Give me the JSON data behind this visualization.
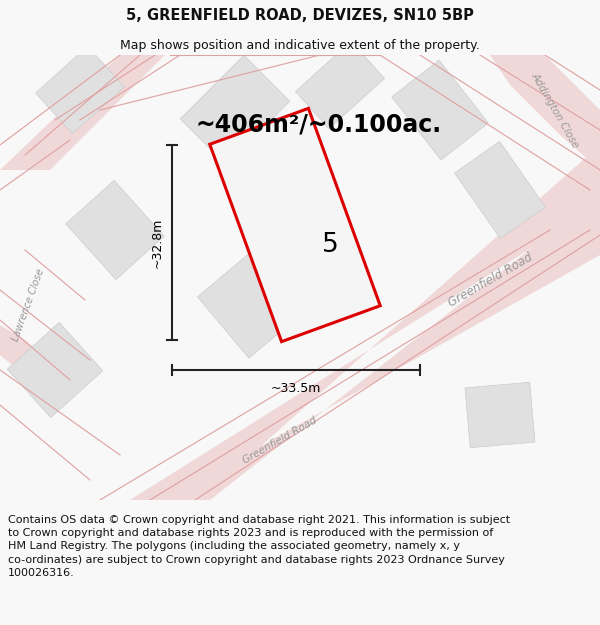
{
  "title": "5, GREENFIELD ROAD, DEVIZES, SN10 5BP",
  "subtitle": "Map shows position and indicative extent of the property.",
  "area_label": "~406m²/~0.100ac.",
  "plot_number": "5",
  "width_label": "~33.5m",
  "height_label": "~32.8m",
  "footer_line1": "Contains OS data © Crown copyright and database right 2021. This information is subject",
  "footer_line2": "to Crown copyright and database rights 2023 and is reproduced with the permission of",
  "footer_line3": "HM Land Registry. The polygons (including the associated geometry, namely x, y",
  "footer_line4": "co-ordinates) are subject to Crown copyright and database rights 2023 Ordnance Survey",
  "footer_line5": "100026316.",
  "bg_color": "#f8f8f8",
  "map_bg": "#ffffff",
  "plot_edge_color": "#dd0000",
  "plot_fill": "#f5f5f5",
  "road_fill_color": "#f0d8d8",
  "road_line_color": "#e0a0a0",
  "building_color": "#e0e0e0",
  "building_edge": "#cccccc",
  "road_label_color": "#999999",
  "dim_line_color": "#222222",
  "title_fontsize": 10.5,
  "subtitle_fontsize": 9,
  "area_fontsize": 17,
  "plot_num_fontsize": 19,
  "footer_fontsize": 8,
  "dim_fontsize": 9,
  "road_fontsize": 8.5
}
